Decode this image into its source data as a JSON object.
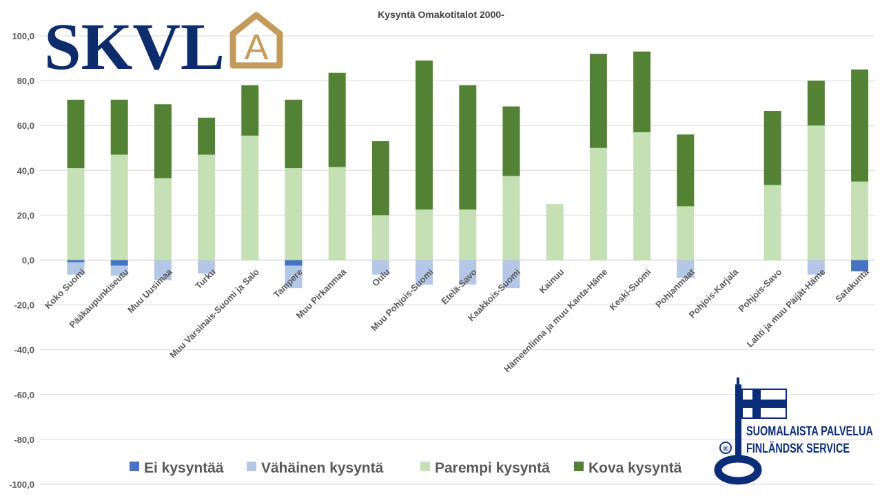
{
  "chart_data": {
    "type": "bar",
    "stacked": true,
    "title": "Kysyntä Omakotitalot 2000-",
    "xlabel": "",
    "ylabel": "",
    "ylim": [
      -100,
      100
    ],
    "yticks": [
      100,
      80,
      60,
      40,
      20,
      0,
      -20,
      -40,
      -60,
      -80,
      -100
    ],
    "ytick_labels": [
      "100,0",
      "80,0",
      "60,0",
      "40,0",
      "20,0",
      "0,0",
      "-20,0",
      "-40,0",
      "-60,0",
      "-80,0",
      "-100,0"
    ],
    "grid": true,
    "legend_position": "bottom",
    "categories": [
      "Koko Suomi",
      "Pääkaupunkiseutu",
      "Muu Uusimaa",
      "Turku",
      "Muu Varsinais-Suomi ja Salo",
      "Tampere",
      "Muu Pirkanmaa",
      "Oulu",
      "Muu Pohjois-Suomi",
      "Etelä-Savo",
      "Kaakkois-Suomi",
      "Kainuu",
      "Hämeenlinna ja muu Kanta-Häme",
      "Keski-Suomi",
      "Pohjanmaat",
      "Pohjois-Karjala",
      "Pohjois-Savo",
      "Lahti ja muu Päijät-Häme",
      "Satakunta"
    ],
    "series": [
      {
        "name": "Ei kysyntää",
        "color": "#4472c4",
        "stack": "negative",
        "values": [
          -1,
          -2.5,
          0,
          0,
          0,
          -2.5,
          0,
          0,
          0,
          0,
          0,
          0,
          0,
          0,
          0,
          0,
          0,
          0,
          -5
        ]
      },
      {
        "name": "Vähäinen kysyntä",
        "color": "#b4c7e7",
        "stack": "negative",
        "values": [
          -5.5,
          -4.5,
          -9,
          -6,
          0,
          -10,
          0,
          -6.5,
          -11,
          -11,
          -12.5,
          0,
          0,
          0,
          -8,
          0,
          0,
          -6.5,
          0
        ]
      },
      {
        "name": "Parempi kysyntä",
        "color": "#c5e0b4",
        "stack": "positive",
        "values": [
          41,
          47,
          36.5,
          47,
          55.5,
          41,
          41.5,
          20,
          22.5,
          22.5,
          37.5,
          25,
          50,
          57,
          24,
          0,
          33.5,
          60,
          35
        ]
      },
      {
        "name": "Kova kysyntä",
        "color": "#548235",
        "stack": "positive",
        "values": [
          30.5,
          24.5,
          33,
          16.5,
          22.5,
          30.5,
          42,
          33,
          66.5,
          55.5,
          31,
          0,
          42,
          36,
          32,
          0,
          33,
          20,
          50
        ]
      }
    ]
  },
  "logo": {
    "text": "SKVL",
    "letter": "A",
    "text_color": "#0c2c6b",
    "house_color": "#c49a5b"
  },
  "badge": {
    "line1": "SUOMALAISTA PALVELUA",
    "line2": "FINLÄNDSK SERVICE",
    "registered": "®",
    "color": "#0b2d78"
  }
}
